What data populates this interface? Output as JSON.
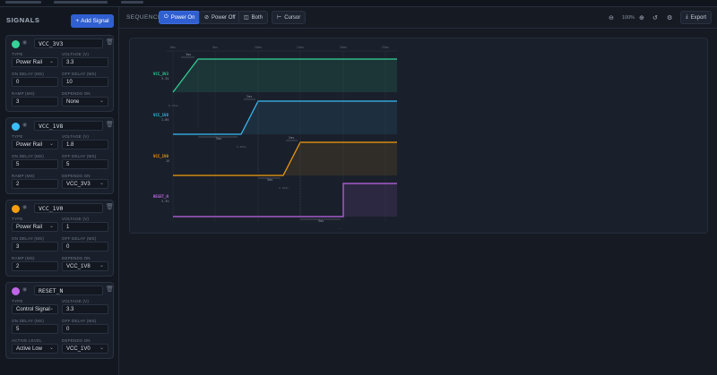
{
  "sidebar": {
    "heading": "SIGNALS",
    "add_button": "Add Signal",
    "signals": [
      {
        "name": "VCC_3V3",
        "color": "#34d399",
        "type_label": "TYPE",
        "type": "Power Rail",
        "voltage_label": "VOLTAGE (V)",
        "voltage": "3.3",
        "on_label": "ON DELAY (MS)",
        "on_delay": "0",
        "off_label": "OFF DELAY (MS)",
        "off_delay": "10",
        "third_label": "RAMP (MS)",
        "third_value": "3",
        "dep_label": "DEPENDS ON",
        "depends_on": "None"
      },
      {
        "name": "VCC_1V8",
        "color": "#38bdf8",
        "type_label": "TYPE",
        "type": "Power Rail",
        "voltage_label": "VOLTAGE (V)",
        "voltage": "1.8",
        "on_label": "ON DELAY (MS)",
        "on_delay": "5",
        "off_label": "OFF DELAY (MS)",
        "off_delay": "5",
        "third_label": "RAMP (MS)",
        "third_value": "2",
        "dep_label": "DEPENDS ON",
        "depends_on": "VCC_3V3"
      },
      {
        "name": "VCC_1V0",
        "color": "#f59e0b",
        "type_label": "TYPE",
        "type": "Power Rail",
        "voltage_label": "VOLTAGE (V)",
        "voltage": "1",
        "on_label": "ON DELAY (MS)",
        "on_delay": "3",
        "off_label": "OFF DELAY (MS)",
        "off_delay": "0",
        "third_label": "RAMP (MS)",
        "third_value": "2",
        "dep_label": "DEPENDS ON",
        "depends_on": "VCC_1V8"
      },
      {
        "name": "RESET_N",
        "color": "#c065e8",
        "type_label": "TYPE",
        "type": "Control Signal",
        "voltage_label": "VOLTAGE (V)",
        "voltage": "3.3",
        "on_label": "ON DELAY (MS)",
        "on_delay": "5",
        "off_label": "OFF DELAY (MS)",
        "off_delay": "0",
        "third_label": "ACTIVE LEVEL",
        "third_value": "Active Low",
        "dep_label": "DEPENDS ON",
        "depends_on": "VCC_1V0"
      }
    ]
  },
  "toolbar": {
    "label": "SEQUENCE",
    "power_on": "Power On",
    "power_off": "Power Off",
    "both": "Both",
    "cursor": "Cursor",
    "zoom": "100%",
    "export": "Export"
  },
  "timing": {
    "time_ticks": [
      "0ms",
      "5ms",
      "10ms",
      "15ms",
      "20ms",
      "25ms"
    ],
    "signals": [
      {
        "label": "VCC_3V3",
        "sub": "3.3V",
        "color": "#34d399",
        "ramp_label": "3ms",
        "threshold": "0.33ms"
      },
      {
        "label": "VCC_1V8",
        "sub": "1.8V",
        "color": "#38bdf8",
        "ramp_label": "2ms",
        "delay_label": "5ms",
        "threshold": "0.60ms"
      },
      {
        "label": "VCC_1V0",
        "sub": "1V",
        "color": "#f59e0b",
        "ramp_label": "2ms",
        "delay_label": "3ms",
        "threshold": "0.10ms"
      },
      {
        "label": "RESET_N",
        "sub": "3.3V",
        "color": "#c065e8",
        "delay_label": "5ms",
        "threshold": "..."
      }
    ]
  }
}
